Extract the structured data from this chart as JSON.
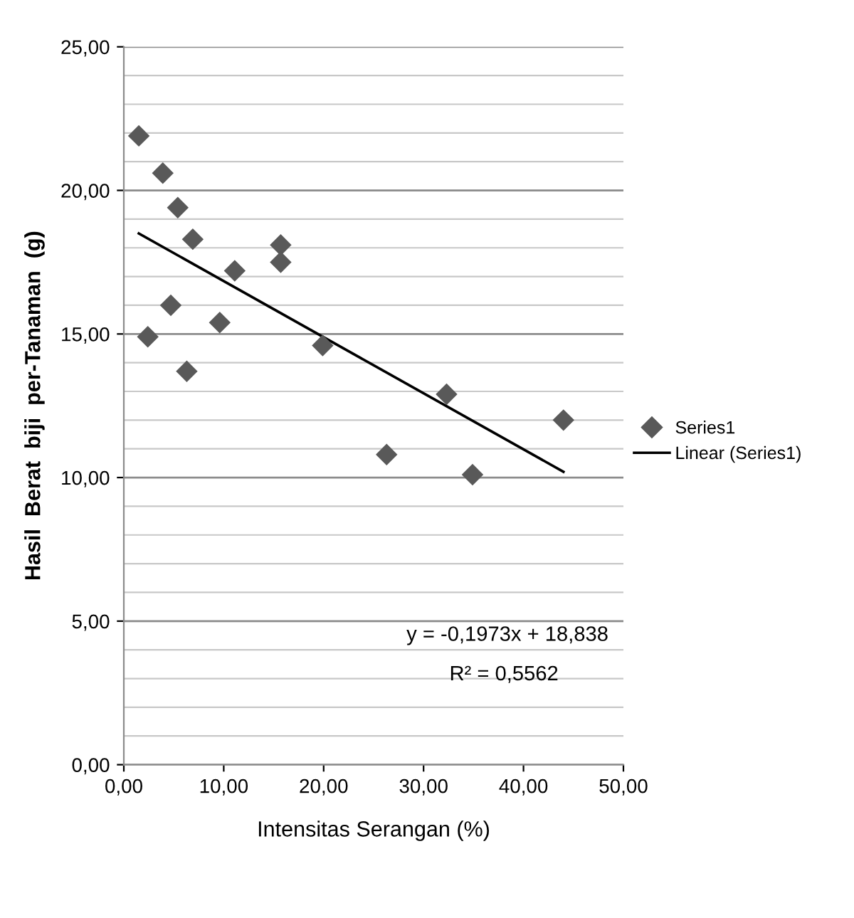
{
  "chart_data": {
    "type": "scatter",
    "xlabel": "Intensitas Serangan (%)",
    "ylabel": "Hasil  Berat  biji  per-Tanaman  (g)",
    "series": [
      {
        "name": "Series1",
        "color": "#595959",
        "marker": "diamond",
        "x": [
          1.5,
          2.4,
          3.9,
          4.7,
          5.4,
          6.3,
          6.9,
          9.6,
          11.1,
          15.7,
          15.7,
          19.9,
          26.3,
          32.3,
          34.9,
          44.0
        ],
        "values": [
          21.9,
          14.9,
          20.6,
          16.0,
          19.4,
          13.7,
          18.3,
          15.4,
          17.2,
          18.1,
          17.5,
          14.6,
          10.8,
          12.9,
          10.1,
          12.0
        ]
      },
      {
        "name": "Linear (Series1)",
        "type": "line",
        "color": "#000000",
        "line_style": "solid",
        "x": [
          1.5,
          44.0
        ],
        "values": [
          18.5,
          10.2
        ]
      }
    ],
    "annotations": [
      "y = -0,1973x + 18,838",
      "R² = 0,5562"
    ],
    "xlim": [
      0,
      50
    ],
    "ylim": [
      0,
      25
    ],
    "xticks": [
      {
        "value": 0,
        "label": "0,00"
      },
      {
        "value": 10,
        "label": "10,00"
      },
      {
        "value": 20,
        "label": "20,00"
      },
      {
        "value": 30,
        "label": "30,00"
      },
      {
        "value": 40,
        "label": "40,00"
      },
      {
        "value": 50,
        "label": "50,00"
      }
    ],
    "yticks": [
      {
        "value": 0,
        "label": "0,00"
      },
      {
        "value": 1,
        "label": null
      },
      {
        "value": 2,
        "label": null
      },
      {
        "value": 3,
        "label": null
      },
      {
        "value": 4,
        "label": null
      },
      {
        "value": 5,
        "label": "5,00"
      },
      {
        "value": 6,
        "label": null
      },
      {
        "value": 7,
        "label": null
      },
      {
        "value": 8,
        "label": null
      },
      {
        "value": 9,
        "label": null
      },
      {
        "value": 10,
        "label": "10,00"
      },
      {
        "value": 11,
        "label": null
      },
      {
        "value": 12,
        "label": null
      },
      {
        "value": 13,
        "label": null
      },
      {
        "value": 14,
        "label": null
      },
      {
        "value": 15,
        "label": "15,00"
      },
      {
        "value": 16,
        "label": null
      },
      {
        "value": 17,
        "label": null
      },
      {
        "value": 18,
        "label": null
      },
      {
        "value": 19,
        "label": null
      },
      {
        "value": 20,
        "label": "20,00"
      },
      {
        "value": 21,
        "label": null
      },
      {
        "value": 22,
        "label": null
      },
      {
        "value": 23,
        "label": null
      },
      {
        "value": 24,
        "label": null
      },
      {
        "value": 25,
        "label": "25,00"
      }
    ],
    "grid": "y",
    "legend": "right"
  }
}
